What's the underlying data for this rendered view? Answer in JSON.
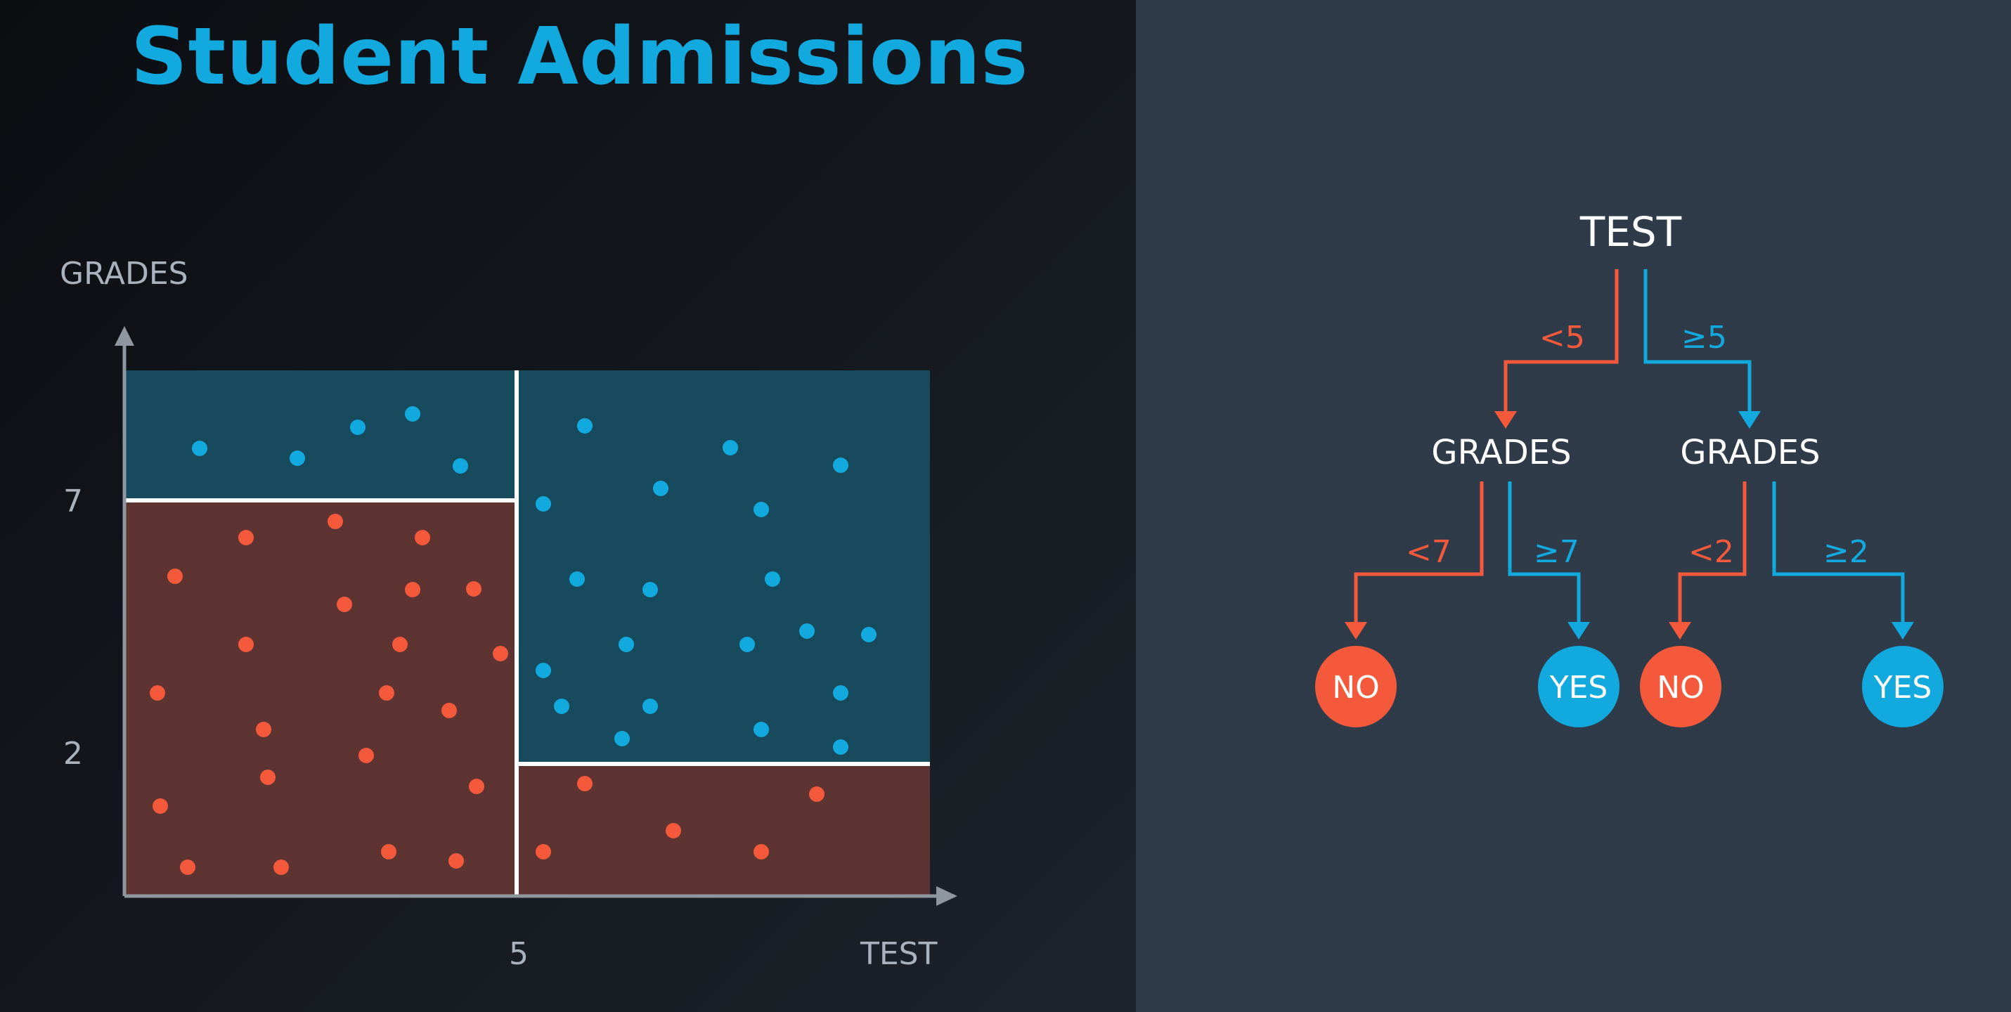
{
  "title": "Student Admissions",
  "colors": {
    "accent_blue": "#12a9de",
    "accent_red": "#f4593b",
    "region_blue": "#164a5c",
    "region_red": "#5e3432",
    "axis": "#8e979f",
    "axis_text": "#aab3bd"
  },
  "chart_data": {
    "type": "scatter",
    "xlabel": "TEST",
    "ylabel": "GRADES",
    "x_ticks": [
      "5"
    ],
    "y_ticks": [
      "7",
      "2"
    ],
    "regions": [
      {
        "class": "blue",
        "test": "<5",
        "grades": "≥7"
      },
      {
        "class": "red",
        "test": "<5",
        "grades": "<7"
      },
      {
        "class": "blue",
        "test": "≥5",
        "grades": "≥2"
      },
      {
        "class": "red",
        "test": "≥5",
        "grades": "<2"
      }
    ]
  },
  "tree": {
    "root": "TEST",
    "left_edge": "<5",
    "right_edge": "≥5",
    "left_node": "GRADES",
    "right_node": "GRADES",
    "ll_edge": "<7",
    "lr_edge": "≥7",
    "rl_edge": "<2",
    "rr_edge": "≥2",
    "leaves": [
      "NO",
      "YES",
      "NO",
      "YES"
    ]
  }
}
